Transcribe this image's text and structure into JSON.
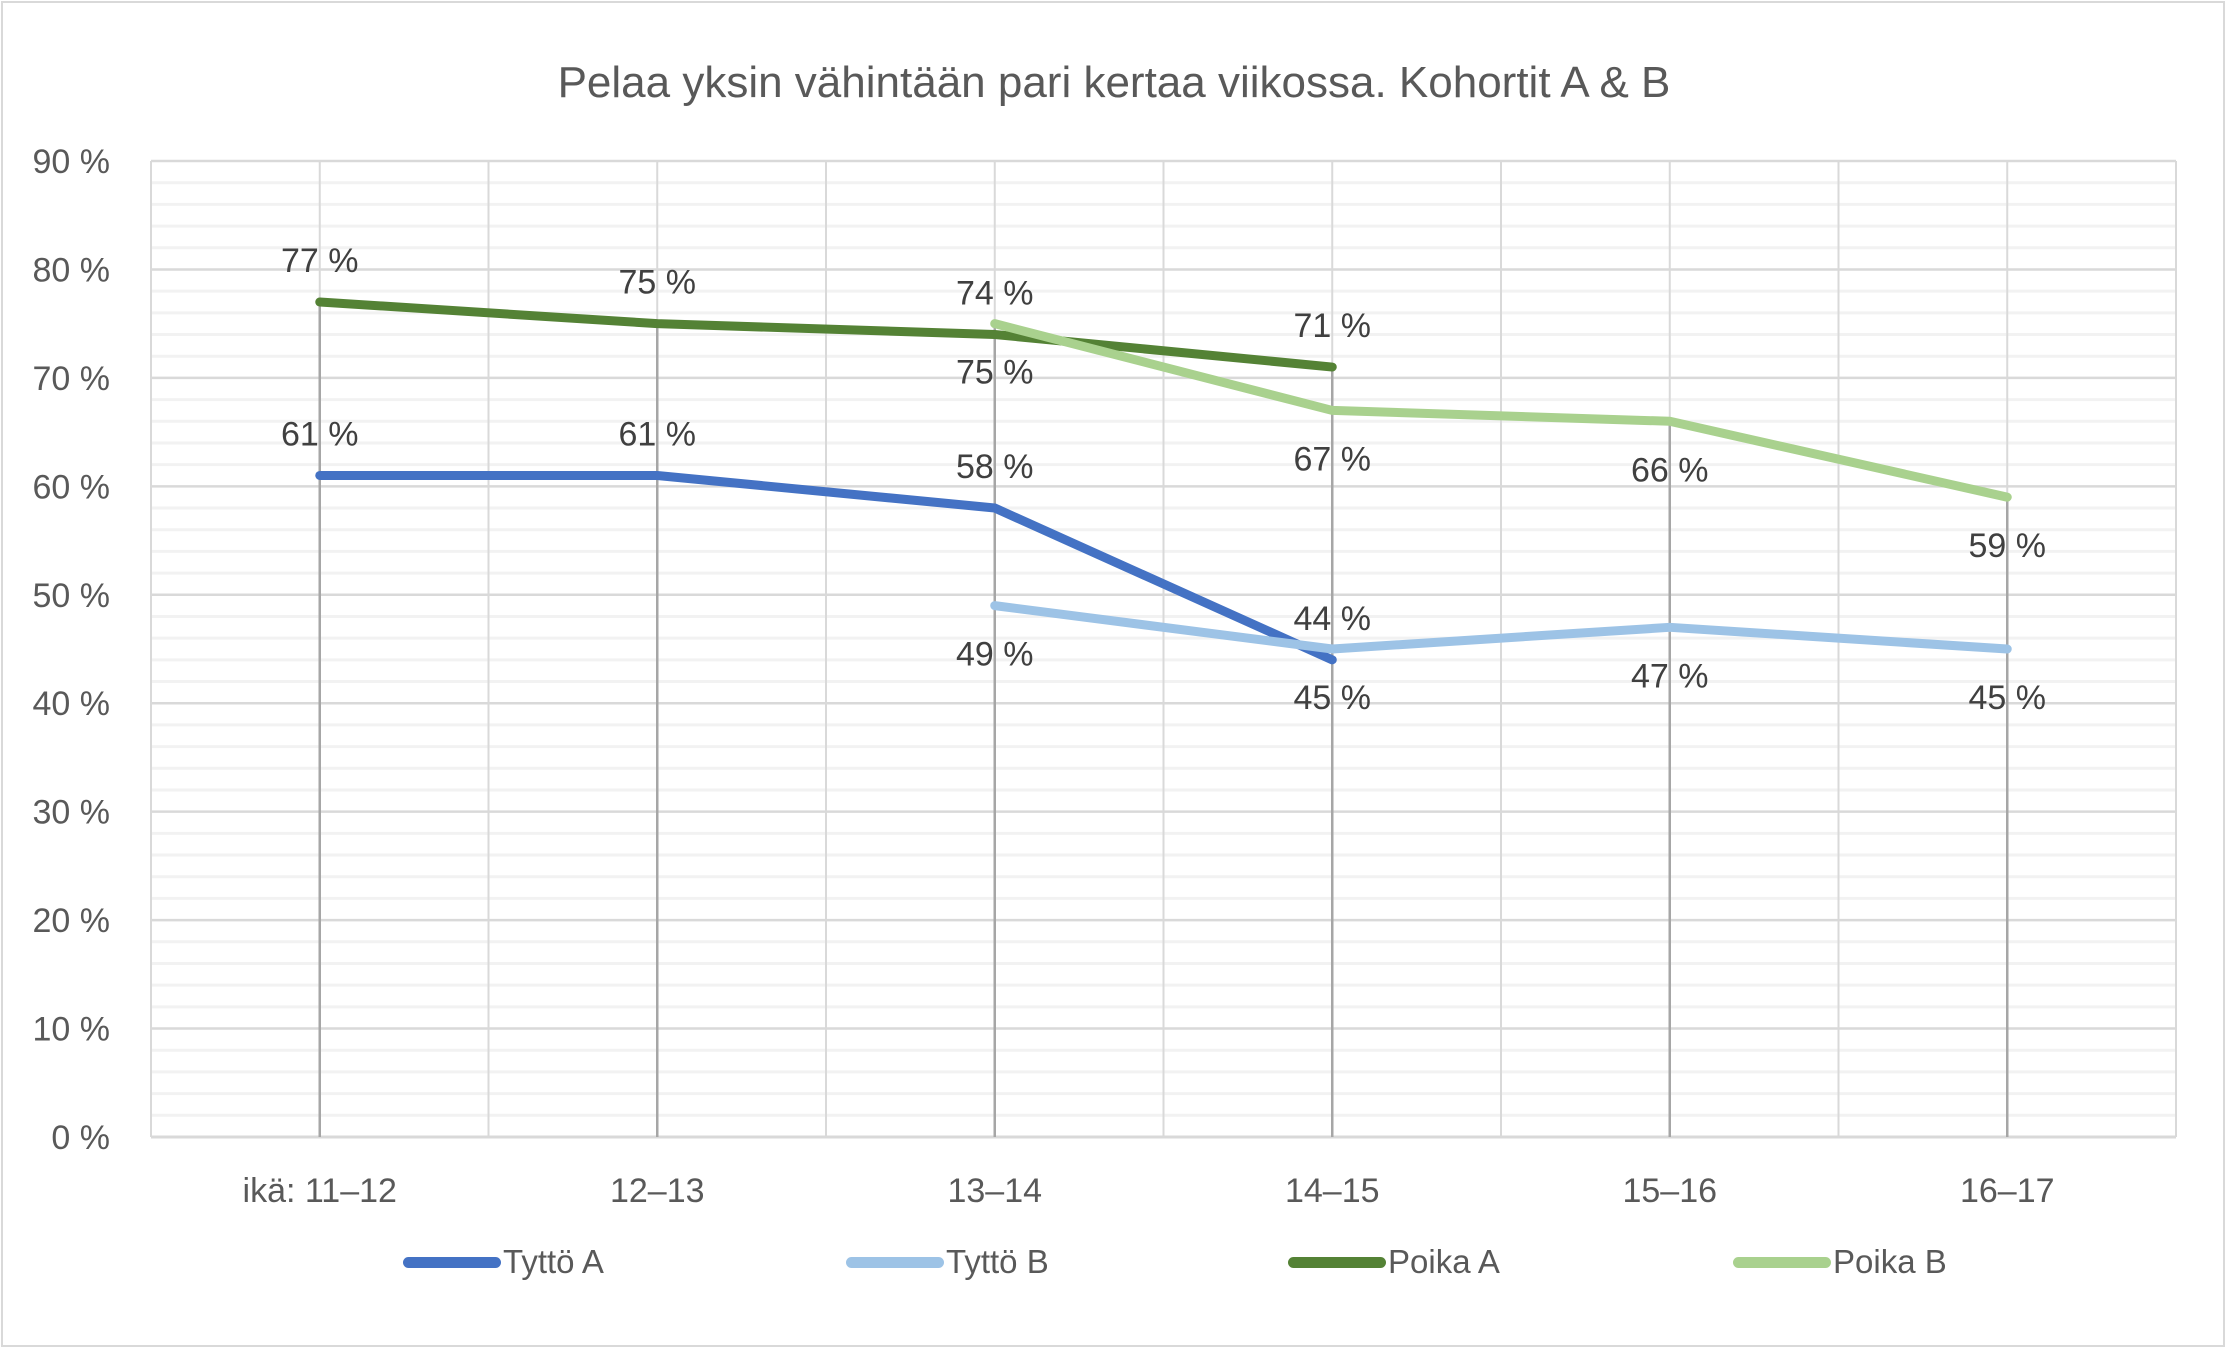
{
  "chart_data": {
    "type": "line",
    "title": "Pelaa yksin vähintään pari kertaa viikossa. Kohortit A & B",
    "categories": [
      "ikä: 11–12",
      "12–13",
      "13–14",
      "14–15",
      "15–16",
      "16–17"
    ],
    "ylim": [
      0,
      90
    ],
    "yticks": [
      0,
      10,
      20,
      30,
      40,
      50,
      60,
      70,
      80,
      90
    ],
    "ytick_labels": [
      "0 %",
      "10 %",
      "20 %",
      "30 %",
      "40 %",
      "50 %",
      "60 %",
      "70 %",
      "80 %",
      "90 %"
    ],
    "grid": true,
    "drop_lines": true,
    "legend_position": "bottom",
    "series": [
      {
        "name": "Tyttö A",
        "color": "#4472c4",
        "values": [
          61,
          61,
          58,
          44,
          null,
          null
        ],
        "labels": [
          "61 %",
          "61 %",
          "58 %",
          "44 %",
          null,
          null
        ],
        "label_side": "above"
      },
      {
        "name": "Tyttö B",
        "color": "#9dc3e6",
        "values": [
          null,
          null,
          49,
          45,
          47,
          45
        ],
        "labels": [
          null,
          null,
          "49 %",
          "45 %",
          "47 %",
          "45 %"
        ],
        "label_side": "below"
      },
      {
        "name": "Poika A",
        "color": "#548235",
        "values": [
          77,
          75,
          74,
          71,
          null,
          null
        ],
        "labels": [
          "77 %",
          "75 %",
          "74 %",
          "71 %",
          null,
          null
        ],
        "label_side": "above"
      },
      {
        "name": "Poika B",
        "color": "#a9d18e",
        "values": [
          null,
          null,
          75,
          67,
          66,
          59
        ],
        "labels": [
          null,
          null,
          "75 %",
          "67 %",
          "66 %",
          "59 %"
        ],
        "label_side": "below"
      }
    ]
  }
}
